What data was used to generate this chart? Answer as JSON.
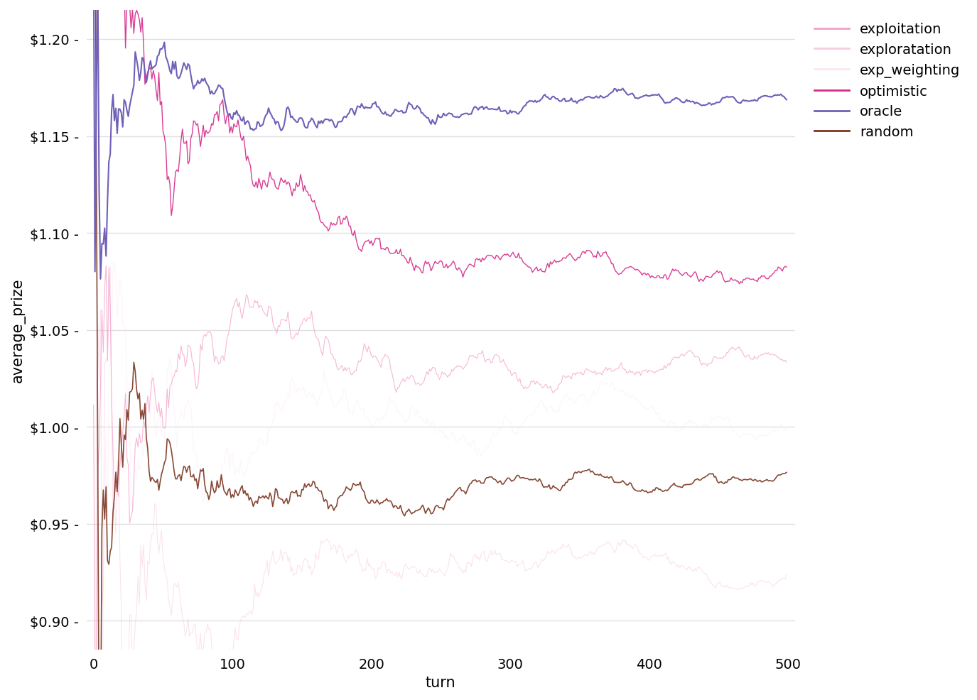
{
  "n_turns": 500,
  "xlabel": "turn",
  "ylabel": "average_prize",
  "ylim": [
    0.885,
    1.215
  ],
  "xlim": [
    -5,
    505
  ],
  "yticks": [
    0.9,
    0.95,
    1.0,
    1.05,
    1.1,
    1.15,
    1.2
  ],
  "xticks": [
    0,
    100,
    200,
    300,
    400,
    500
  ],
  "legend_labels": [
    "exploitation",
    "exploratation",
    "exp_weighting",
    "optimistic",
    "oracle",
    "random"
  ],
  "colors": {
    "exploitation": "#f4a0c8",
    "exploratation": "#f8cce0",
    "exp_weighting": "#fbe8f2",
    "optimistic": "#d4298a",
    "oracle": "#7060b8",
    "random": "#7a3520"
  },
  "alphas": {
    "exploitation": 0.75,
    "exploratation": 0.55,
    "exp_weighting": 0.45,
    "optimistic": 0.9,
    "oracle": 1.0,
    "random": 0.9
  },
  "linewidths": {
    "exploitation": 0.8,
    "exploratation": 0.8,
    "exp_weighting": 0.8,
    "optimistic": 1.0,
    "oracle": 1.5,
    "random": 1.2
  },
  "background_color": "#ffffff",
  "grid_color": "#e0e0e0",
  "tick_label_fontsize": 14,
  "axis_label_fontsize": 15,
  "legend_fontsize": 14
}
